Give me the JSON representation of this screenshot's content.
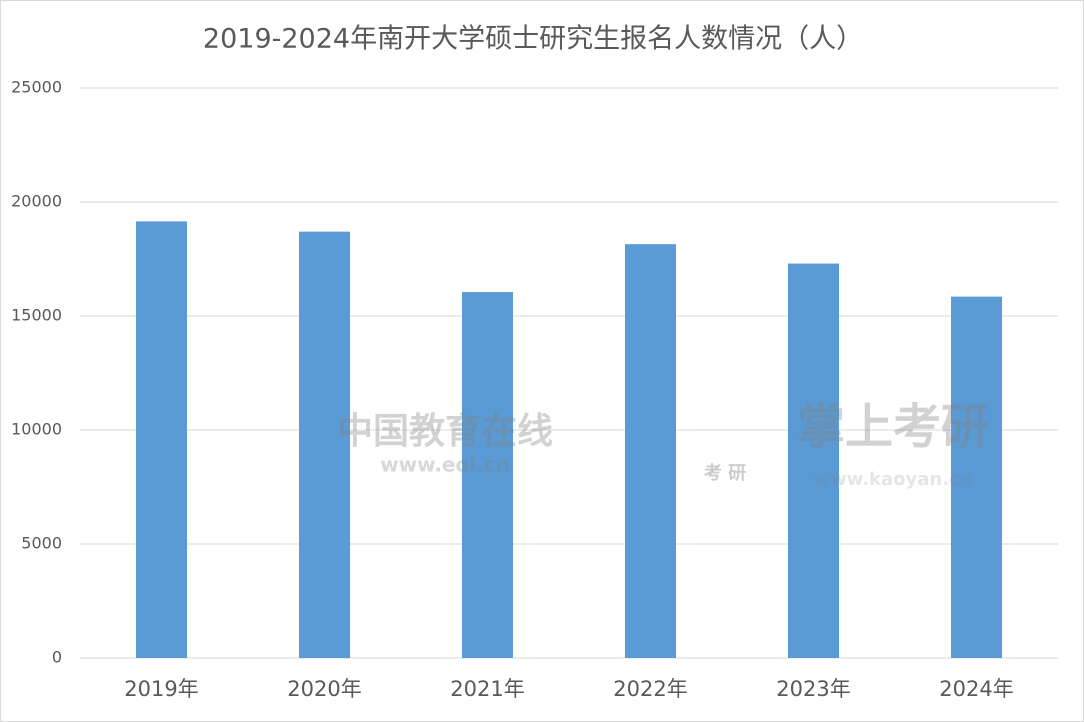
{
  "chart_data": {
    "type": "bar",
    "title": "2019-2024年南开大学硕士研究生报名人数情况（人）",
    "categories": [
      "2019年",
      "2020年",
      "2021年",
      "2022年",
      "2023年",
      "2024年"
    ],
    "values": [
      19150,
      18700,
      16050,
      18150,
      17300,
      15850
    ],
    "color": "#5b9bd5",
    "ylim": [
      0,
      25000
    ],
    "yticks": [
      0,
      5000,
      10000,
      15000,
      20000,
      25000
    ],
    "grid": true,
    "watermarks": [
      "中国教育在线",
      "www.eol.cn",
      "掌上考研",
      "考 研",
      "www.kaoyan.cn"
    ]
  }
}
